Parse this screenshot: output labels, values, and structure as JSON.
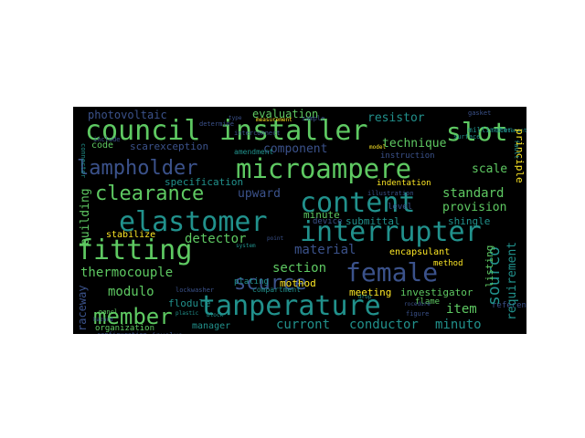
{
  "colors": {
    "background": "#000000",
    "palette": [
      "#440154",
      "#3b528b",
      "#21918c",
      "#5ec962",
      "#fde725",
      "#2c728e",
      "#35b779"
    ]
  },
  "words": {
    "council": "council",
    "installer": "installer",
    "slot": "slot",
    "lampholder": "lampholder",
    "microampere": "microampere",
    "clearance": "clearance",
    "content": "content",
    "elastomer": "elastomer",
    "interrupter": "interrupter",
    "fitting": "fitting",
    "female": "female",
    "scurce": "scurce",
    "member": "member",
    "tanperature": "tanperature",
    "photovoltaic": "photovoltaic",
    "evaluation": "evaluation",
    "resistor": "resistor",
    "technique": "technique",
    "code": "code",
    "scarexception": "scarexception",
    "component": "component",
    "specification": "specification",
    "upward": "upward",
    "standard": "standard",
    "provision": "provision",
    "scale": "scale",
    "principle": "principle",
    "building": "building",
    "stabilize": "stabilize",
    "detector": "detector",
    "material": "material",
    "submittal": "submittal",
    "shingle": "shingle",
    "thermocouple": "thermocouple",
    "section": "section",
    "sourco": "sourco",
    "listing": "listing",
    "requirement": "requirement",
    "modulo": "modulo",
    "mothod": "mothod",
    "meeting": "meeting",
    "investigator": "investigator",
    "item": "item",
    "curront": "curront",
    "conductor": "conductor",
    "minuto": "minuto",
    "raceway": "raceway",
    "manager": "manager",
    "encapsulant": "encapsulant",
    "method": "method",
    "minute": "minute",
    "device": "device",
    "flodule": "flodule",
    "plating": "plating",
    "indentation": "indentation",
    "reference": "reference",
    "flame": "flame",
    "organization": "organization",
    "involve": "involve",
    "configuration": "configuration",
    "compartment": "compartment",
    "lockwasher": "lockwasher",
    "instruction": "instruction",
    "millimeter": "millimeter",
    "surface": "surface",
    "level": "level",
    "amendment": "amendment",
    "sample": "sample",
    "determine": "determine",
    "measurement": "measurement",
    "illustration": "illustration",
    "gasket": "gasket",
    "figure": "figure",
    "block": "block",
    "pancl": "pancl",
    "hazard": "hazard",
    "statement": "statement",
    "include": "include",
    "system": "system",
    "point": "point",
    "interconnect": "interconnect",
    "type": "type",
    "drop": "drop",
    "rocedure": "rocedure",
    "model": "model",
    "plastic": "plastic",
    "connector": "connector",
    "fault": "fault"
  }
}
